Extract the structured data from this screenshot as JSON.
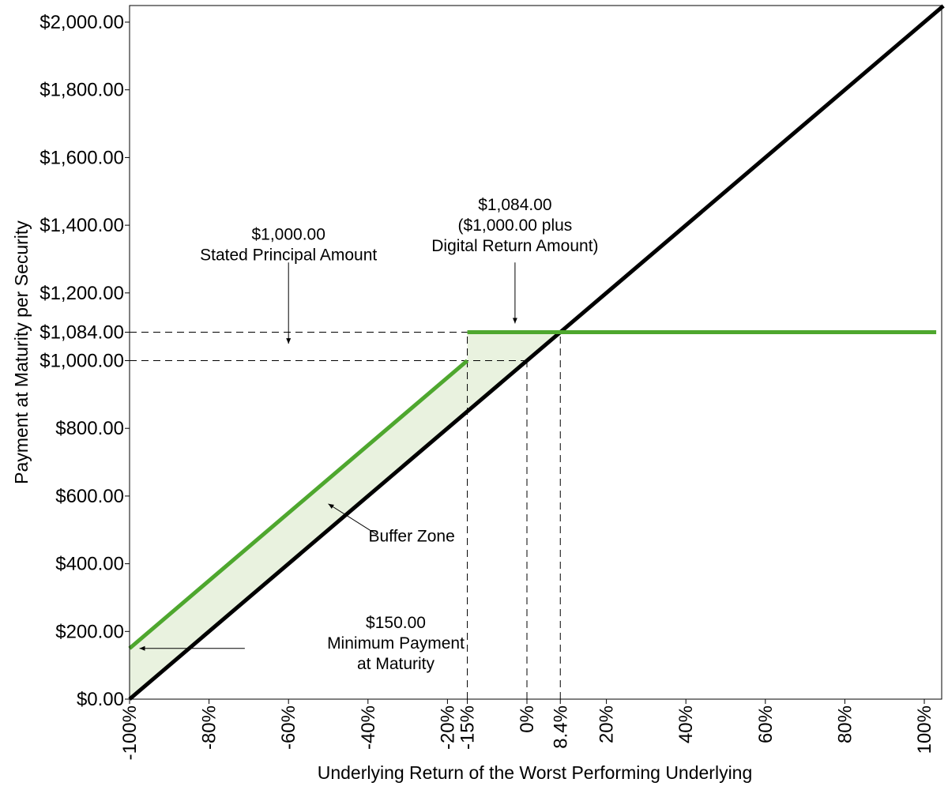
{
  "chart_data": {
    "type": "line",
    "xlabel": "Underlying Return of the Worst Performing Underlying",
    "ylabel": "Payment at Maturity per Security",
    "xlim": [
      -100,
      103
    ],
    "ylim": [
      0,
      2050
    ],
    "grid": false,
    "y_ticks": [
      {
        "value": 0,
        "label": "$0.00"
      },
      {
        "value": 200,
        "label": "$200.00"
      },
      {
        "value": 400,
        "label": "$400.00"
      },
      {
        "value": 600,
        "label": "$600.00"
      },
      {
        "value": 800,
        "label": "$800.00"
      },
      {
        "value": 1000,
        "label": "$1,000.00"
      },
      {
        "value": 1084,
        "label": "$1,084.00"
      },
      {
        "value": 1200,
        "label": "$1,200.00"
      },
      {
        "value": 1400,
        "label": "$1,400.00"
      },
      {
        "value": 1600,
        "label": "$1,600.00"
      },
      {
        "value": 1800,
        "label": "$1,800.00"
      },
      {
        "value": 2000,
        "label": "$2,000.00"
      }
    ],
    "x_ticks": [
      {
        "value": -100,
        "label": "-100%"
      },
      {
        "value": -80,
        "label": "-80%"
      },
      {
        "value": -60,
        "label": "-60%"
      },
      {
        "value": -40,
        "label": "-40%"
      },
      {
        "value": -20,
        "label": "-20%"
      },
      {
        "value": -15,
        "label": "-15%"
      },
      {
        "value": 0,
        "label": "0%"
      },
      {
        "value": 8.4,
        "label": "8.4%"
      },
      {
        "value": 20,
        "label": "20%"
      },
      {
        "value": 40,
        "label": "40%"
      },
      {
        "value": 60,
        "label": "60%"
      },
      {
        "value": 80,
        "label": "80%"
      },
      {
        "value": 100,
        "label": "100%"
      }
    ],
    "series": [
      {
        "color": "#000000",
        "points": [
          [
            -100,
            0
          ],
          [
            104.8,
            2048
          ]
        ]
      },
      {
        "color": "#4ea72e",
        "segments": [
          [
            [
              -100,
              150
            ],
            [
              -15,
              1000
            ]
          ],
          [
            [
              -15,
              1084
            ],
            [
              103,
              1084
            ]
          ]
        ]
      }
    ],
    "buffer_zone": {
      "color": "#e9f2df",
      "polygon": [
        [
          -100,
          0
        ],
        [
          -100,
          150
        ],
        [
          -15,
          1000
        ],
        [
          -15,
          1084
        ],
        [
          8.4,
          1084
        ]
      ]
    },
    "reference_lines": [
      {
        "orientation": "h",
        "value": 1084,
        "from": -100,
        "to": -15
      },
      {
        "orientation": "h",
        "value": 1000,
        "from": -100,
        "to": 0
      },
      {
        "orientation": "v",
        "value": -15,
        "from": 0,
        "to": 1084
      },
      {
        "orientation": "v",
        "value": 0,
        "from": 0,
        "to": 1000
      },
      {
        "orientation": "v",
        "value": 8.4,
        "from": 0,
        "to": 1084
      }
    ],
    "annotations": [
      {
        "lines": [
          "$1,000.00",
          "Stated Principal Amount"
        ],
        "text_at": [
          -60,
          1357
        ],
        "arrow_from": [
          -60,
          1290
        ],
        "arrow_to": [
          -60,
          1050
        ]
      },
      {
        "lines": [
          "$1,084.00",
          "($1,000.00 plus",
          "Digital Return Amount)"
        ],
        "text_at": [
          -3,
          1444
        ],
        "arrow_from": [
          -3,
          1290
        ],
        "arrow_to": [
          -3,
          1110
        ]
      },
      {
        "lines": [
          "Buffer Zone"
        ],
        "text_at": [
          -29,
          466
        ],
        "arrow_from": [
          -38,
          488
        ],
        "arrow_to": [
          -50,
          577
        ]
      },
      {
        "lines": [
          "$150.00",
          "Minimum Payment",
          "at Maturity"
        ],
        "text_at": [
          -33,
          210
        ],
        "arrow_from": [
          -71,
          150
        ],
        "arrow_to": [
          -97.5,
          150
        ]
      }
    ]
  }
}
